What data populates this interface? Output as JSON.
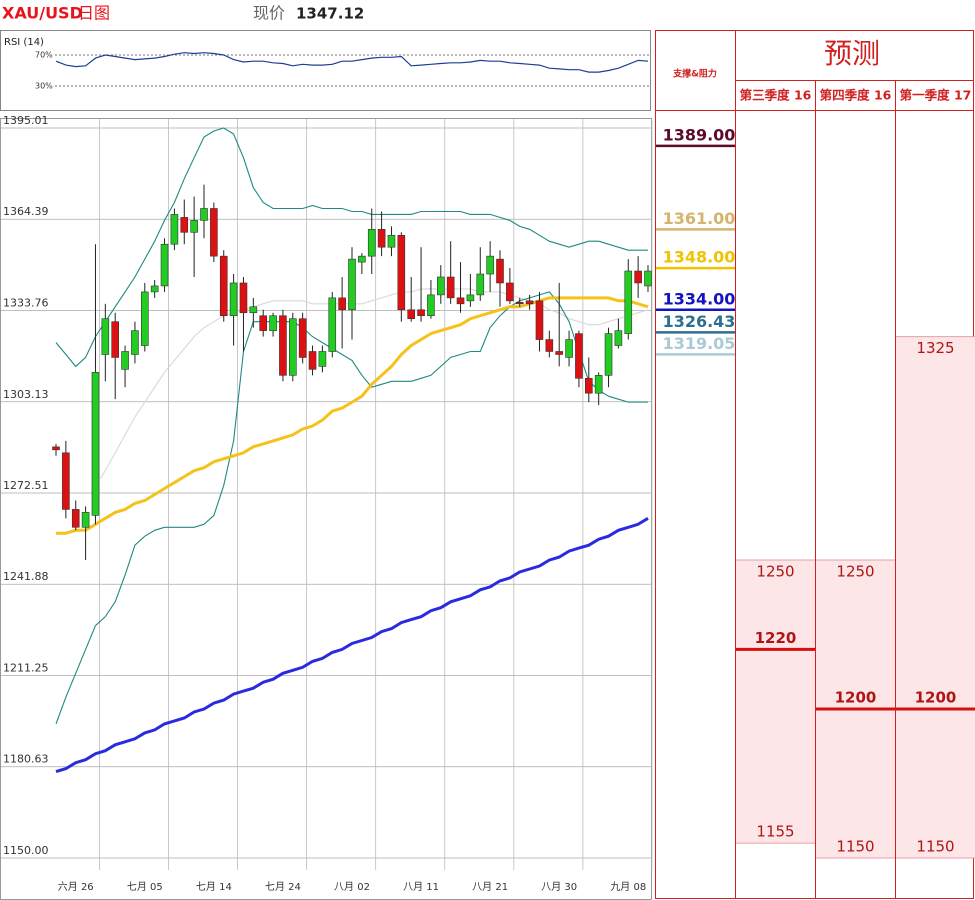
{
  "header": {
    "symbol": "XAU/USD",
    "period": "日图",
    "price_label": "现价",
    "price": 1347.12
  },
  "chart_data": [
    {
      "type": "candlestick",
      "categories": [
        null,
        null,
        "六月 26",
        null,
        null,
        null,
        null,
        null,
        null,
        "七月 05",
        null,
        null,
        null,
        null,
        null,
        null,
        "七月 14",
        null,
        null,
        null,
        null,
        null,
        null,
        "七月 24",
        null,
        null,
        null,
        null,
        null,
        null,
        "八月 02",
        null,
        null,
        null,
        null,
        null,
        null,
        "八月 11",
        null,
        null,
        null,
        null,
        null,
        null,
        "八月 21",
        null,
        null,
        null,
        null,
        null,
        null,
        "八月 30",
        null,
        null,
        null,
        null,
        null,
        null,
        "九月 08",
        null,
        null
      ],
      "open": [
        1288,
        1286,
        1267,
        1261,
        1265,
        1319,
        1330,
        1314,
        1319,
        1322,
        1340,
        1342,
        1356,
        1365,
        1360,
        1364,
        1368,
        1352,
        1332,
        1343,
        1333,
        1332,
        1327,
        1332,
        1312,
        1331,
        1320,
        1315,
        1320,
        1338,
        1334,
        1350,
        1352,
        1361,
        1355,
        1359,
        1334,
        1334,
        1332,
        1339,
        1345,
        1338,
        1337,
        1339,
        1346,
        1351,
        1343,
        1336.5,
        1337,
        1337,
        1324,
        1320,
        1318,
        1326,
        1311,
        1306,
        1312,
        1322,
        1326,
        1347,
        1342
      ],
      "high": [
        1289,
        1290,
        1270,
        1268,
        1356,
        1336,
        1333,
        1322,
        1330,
        1343,
        1344,
        1358,
        1368,
        1371,
        1372,
        1376,
        1370,
        1354,
        1346,
        1345,
        1338,
        1334,
        1333,
        1334,
        1333,
        1333,
        1322,
        1322,
        1340,
        1345,
        1355,
        1353,
        1368,
        1367,
        1362,
        1360,
        1345,
        1355,
        1344,
        1349,
        1357,
        1350,
        1346,
        1355,
        1357,
        1354,
        1348,
        1338,
        1339,
        1340,
        1327,
        1343,
        1327,
        1327,
        1318,
        1313,
        1328,
        1331,
        1351,
        1352,
        1349
      ],
      "low": [
        1285,
        1264,
        1260,
        1250,
        1262,
        1310,
        1304,
        1308,
        1316,
        1320,
        1338,
        1340,
        1354,
        1356,
        1345,
        1358,
        1350,
        1330,
        1322,
        1320,
        1328,
        1325,
        1325,
        1310,
        1310,
        1316,
        1312,
        1313,
        1318,
        1321,
        1324,
        1346,
        1346,
        1352,
        1352,
        1330,
        1330,
        1330,
        1331,
        1336,
        1336,
        1333,
        1335,
        1337,
        1340,
        1335,
        1336,
        1335,
        1334,
        1320,
        1318,
        1315,
        1315,
        1308,
        1303,
        1302,
        1308,
        1321,
        1324,
        1338,
        1340
      ],
      "close": [
        1287,
        1267,
        1261,
        1266,
        1313,
        1331,
        1318,
        1320,
        1327,
        1340,
        1342,
        1356,
        1366,
        1360,
        1364,
        1368,
        1352,
        1332,
        1343,
        1333,
        1335,
        1327,
        1332,
        1312,
        1331,
        1318,
        1314,
        1320,
        1338,
        1334,
        1351,
        1352,
        1361,
        1355,
        1359,
        1334,
        1331,
        1332,
        1339,
        1345,
        1338,
        1336,
        1339,
        1346,
        1352,
        1343,
        1337,
        1336,
        1336,
        1324,
        1320,
        1319,
        1324,
        1311,
        1306,
        1312,
        1326,
        1327,
        1347,
        1343,
        1347
      ],
      "up_color": "#22cc22",
      "down_color": "#dd1111",
      "overlays": [
        {
          "color": "#1f8a80",
          "style": "thin",
          "values": [
            1323,
            1319,
            1315,
            1318,
            1325,
            1330,
            1335,
            1340,
            1345,
            1351,
            1357,
            1364,
            1370,
            1378,
            1385,
            1392,
            1394,
            1395,
            1393,
            1385,
            1375,
            1370,
            1368,
            1368,
            1368,
            1368,
            1369,
            1368,
            1368,
            1368,
            1367,
            1367,
            1366,
            1366,
            1366,
            1366,
            1366,
            1367,
            1367,
            1367,
            1367,
            1367,
            1366,
            1366,
            1366,
            1365,
            1364,
            1362,
            1361,
            1359,
            1357,
            1356,
            1355,
            1356,
            1357,
            1357,
            1356,
            1355,
            1354,
            1354,
            1354
          ]
        },
        {
          "color": "#d8d8d8",
          "style": "thin",
          "values": [
            null,
            null,
            null,
            null,
            1275,
            1280,
            1286,
            1292,
            1298,
            1303,
            1308,
            1313,
            1317,
            1321,
            1325,
            1328,
            1330,
            1332,
            1333,
            1334,
            1335,
            1336,
            1337,
            1337,
            1337,
            1337,
            1336,
            1336,
            1336,
            1336,
            1336,
            1336,
            1337,
            1338,
            1339,
            1340,
            1340,
            1341,
            1341,
            1341,
            1341,
            1341,
            1341,
            1340,
            1340,
            1340,
            1339,
            1338,
            1337,
            1336,
            1334,
            1333,
            1331,
            1330,
            1329,
            1329,
            1330,
            1331,
            1332,
            1333,
            1334
          ]
        },
        {
          "color": "#1f8a80",
          "style": "thin",
          "values": [
            1195,
            1204,
            1212,
            1220,
            1228,
            1231,
            1236,
            1245,
            1255,
            1258,
            1260,
            1261,
            1261,
            1261,
            1261,
            1262,
            1265,
            1275,
            1290,
            1320,
            1330,
            1330,
            1330,
            1330,
            1330,
            1328,
            1325,
            1323,
            1321,
            1319,
            1317,
            1312,
            1308,
            1309,
            1310,
            1310,
            1310,
            1311,
            1312,
            1315,
            1318,
            1319,
            1320,
            1320,
            1328,
            1332,
            1335,
            1337,
            1338,
            1339,
            1340,
            1336,
            1330,
            1320,
            1310,
            1307,
            1305,
            1304,
            1303,
            1303,
            1303
          ]
        },
        {
          "color": "#f5c21b",
          "style": "thick",
          "values": [
            1259,
            1259,
            1260,
            1260,
            1262,
            1264,
            1266,
            1267,
            1269,
            1270,
            1272,
            1274,
            1276,
            1278,
            1280,
            1281,
            1283,
            1284,
            1285,
            1286,
            1288,
            1289,
            1290,
            1291,
            1292,
            1294,
            1295,
            1297,
            1300,
            1301,
            1303,
            1305,
            1309,
            1312,
            1315,
            1319,
            1322,
            1324,
            1326,
            1327,
            1328,
            1329,
            1331,
            1332,
            1333,
            1334,
            1335,
            1335,
            1336,
            1337,
            1338,
            1338,
            1338,
            1338,
            1338,
            1338,
            1338,
            1337,
            1337,
            1336,
            1335
          ]
        },
        {
          "color": "#2a2ae0",
          "style": "thick",
          "values": [
            1179,
            1180,
            1182,
            1183,
            1185,
            1186,
            1188,
            1189,
            1190,
            1192,
            1193,
            1195,
            1196,
            1197,
            1199,
            1200,
            1202,
            1203,
            1205,
            1206,
            1207,
            1209,
            1210,
            1212,
            1213,
            1214,
            1216,
            1217,
            1219,
            1220,
            1222,
            1223,
            1224,
            1226,
            1227,
            1229,
            1230,
            1231,
            1233,
            1234,
            1236,
            1237,
            1238,
            1240,
            1241,
            1243,
            1244,
            1246,
            1247,
            1248,
            1250,
            1251,
            1253,
            1254,
            1255,
            1257,
            1258,
            1260,
            1261,
            1262,
            1264
          ]
        }
      ],
      "ylim": [
        1150,
        1395.01
      ],
      "yticks": [
        1395.01,
        1364.39,
        1333.76,
        1303.13,
        1272.51,
        1241.88,
        1211.25,
        1180.63,
        {
          "value": 1150,
          "label": "1150.00"
        }
      ],
      "grid": true
    },
    {
      "type": "line",
      "title": "RSI (14)",
      "color": "#1c3f94",
      "values": [
        62,
        57,
        55,
        56,
        66,
        70,
        68,
        66,
        64,
        65,
        66,
        68,
        71,
        73,
        72,
        73,
        72,
        70,
        64,
        61,
        62,
        62,
        60,
        59,
        56,
        58,
        57,
        57,
        58,
        62,
        62,
        64,
        66,
        67,
        67,
        68,
        56,
        57,
        58,
        59,
        60,
        60,
        61,
        63,
        62,
        62,
        60,
        59,
        58,
        57,
        53,
        52,
        51,
        51,
        48,
        48,
        50,
        53,
        58,
        63,
        62
      ],
      "ylim": [
        0,
        100
      ],
      "yticks": [
        {
          "value": 70,
          "label": "70%"
        },
        {
          "value": 30,
          "label": "30%"
        }
      ]
    }
  ],
  "levels": {
    "title": "支撑&阻力",
    "items": [
      {
        "value": 1389,
        "label": "1389.00",
        "color": "#5c0b2e"
      },
      {
        "value": 1361,
        "label": "1361.00",
        "color": "#d6b46e"
      },
      {
        "value": 1348,
        "label": "1348.00",
        "color": "#f2c200"
      },
      {
        "value": 1334,
        "label": "1334.00",
        "color": "#1414c0"
      },
      {
        "value": 1326.43,
        "label": "1326.43",
        "color": "#2f6f8f"
      },
      {
        "value": 1319.05,
        "label": "1319.05",
        "color": "#a9cbd3"
      }
    ]
  },
  "forecast": {
    "title": "预测",
    "columns": [
      {
        "period": "第三季度 16",
        "high": 1250,
        "mid": 1220,
        "low": 1155
      },
      {
        "period": "第四季度 16",
        "high": 1250,
        "mid": 1200,
        "low": 1150
      },
      {
        "period": "第一季度 17",
        "high": 1325,
        "mid": 1200,
        "low": 1150
      }
    ]
  }
}
